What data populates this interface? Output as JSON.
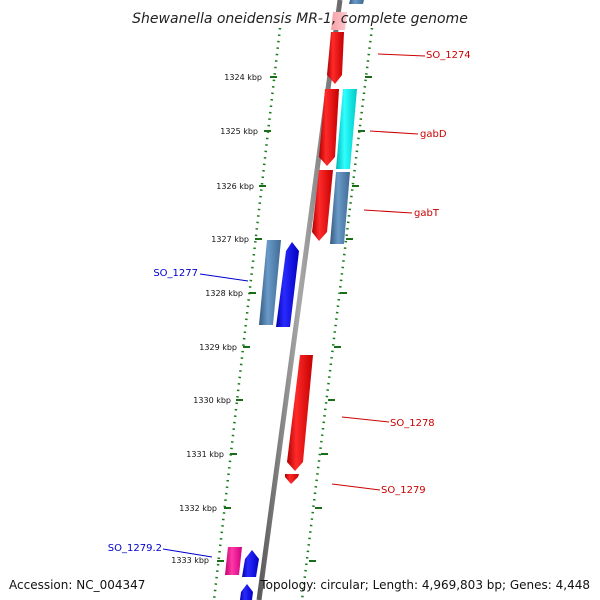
{
  "title": "Shewanella oneidensis MR-1, complete genome",
  "footer": {
    "accession": "Accession: NC_004347",
    "summary": "Topology: circular; Length: 4,969,803 bp; Genes: 4,448"
  },
  "kbp_ticks": [
    "1324 kbp",
    "1325 kbp",
    "1326 kbp",
    "1327 kbp",
    "1328 kbp",
    "1329 kbp",
    "1330 kbp",
    "1331 kbp",
    "1332 kbp",
    "1333 kbp"
  ],
  "genes": [
    {
      "name": "SO_1274",
      "strand": "reverse",
      "color": "#ff0000",
      "label_color": "#cc0000"
    },
    {
      "name": "gabD",
      "strand": "reverse",
      "color": "#00e5e5",
      "label_color": "#cc0000"
    },
    {
      "name": "gabT",
      "strand": "reverse",
      "color": "#4f7fb0",
      "label_color": "#cc0000"
    },
    {
      "name": "SO_1277",
      "strand": "forward",
      "color": "#0000ff",
      "label_color": "#0000cc"
    },
    {
      "name": "SO_1278",
      "strand": "reverse",
      "color": "#ff0000",
      "label_color": "#cc0000"
    },
    {
      "name": "SO_1279",
      "strand": "reverse",
      "color": "#ff0000",
      "label_color": "#cc0000"
    },
    {
      "name": "SO_1279.2",
      "strand": "forward",
      "color": "#ff1493",
      "label_color": "#0000cc"
    }
  ],
  "colors": {
    "backbone": "#808080",
    "ring_dots": "#1a7a1a",
    "ticks": "#1a6e1a"
  }
}
